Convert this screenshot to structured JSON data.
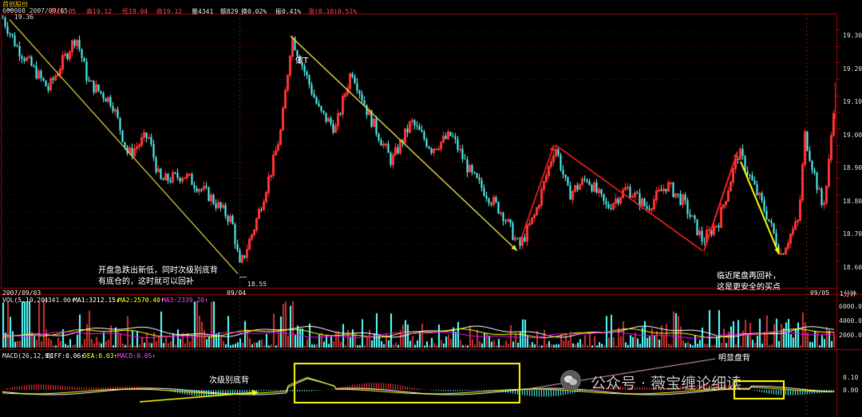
{
  "header": {
    "name": "首创股份",
    "code_date": "600008 2007/09/05",
    "open": "开19.05",
    "high": "高19.12",
    "low": "低19.04",
    "close": "收19.12",
    "vol": "量4341",
    "amount": "额829",
    "turnover": "换0.02%",
    "amplitude": "振0.41%",
    "change": "涨(0.10)0.51%"
  },
  "price_axis": {
    "ticks": [
      "19.30",
      "19.20",
      "19.10",
      "19.00",
      "18.90",
      "18.80",
      "18.70",
      "18.60"
    ],
    "high_label": "19.36",
    "low_label": "18.55"
  },
  "dates": {
    "left": "2007/09/03",
    "mid": "09/04",
    "right": "09/05",
    "timeframe": "1分钟"
  },
  "vol_panel": {
    "legend_prefix": "VOL(5,10,20)",
    "vol_value": "4341.00↑",
    "ma1": "MA1:3212.15↓",
    "ma2": "MA2:2570.40↑",
    "ma3": "MA3:2339.20↑",
    "ticks": [
      "6000.00",
      "4000.00",
      "2000.00"
    ]
  },
  "macd_panel": {
    "legend_prefix": "MACD(26,12,9)",
    "diff": "DIFF:0.06↑",
    "dea": "DEA:0.03↑",
    "macd": "MACD:0.05↑",
    "ticks": [
      "0.10",
      "0.00"
    ]
  },
  "annotations": {
    "a1": "开盘急跌出新低，同时次级别底背",
    "a2": "有底仓的，这时就可以回补",
    "a3": "做T",
    "a4": "临近尾盘再回补，",
    "a5": "这是更安全的买点",
    "a6": "次级别底背",
    "a7": "明显盘背"
  },
  "watermark": "公众号 · 薇宝缠论细读",
  "colors": {
    "up": "#ff3232",
    "down": "#54ffff",
    "yellow": "#ffff00",
    "red": "#ff2020",
    "ma1": "#ffffff",
    "ma2": "#ffff00",
    "ma3": "#ff00ff"
  },
  "chart_data": {
    "type": "candlestick",
    "ylim": [
      18.52,
      19.37
    ],
    "swing_points": [
      {
        "time": "09/03 open",
        "price": 19.36
      },
      {
        "time": "09/04 low",
        "price": 18.55
      },
      {
        "time": "09/04 rebound",
        "price": 19.28
      },
      {
        "time": "09/04 pullback",
        "price": 18.63
      },
      {
        "time": "09/05",
        "price": 18.95
      },
      {
        "time": "09/05",
        "price": 18.62
      },
      {
        "time": "09/05",
        "price": 18.93
      },
      {
        "time": "09/05 late",
        "price": 18.58
      },
      {
        "time": "09/05 close",
        "price": 19.12
      }
    ]
  }
}
